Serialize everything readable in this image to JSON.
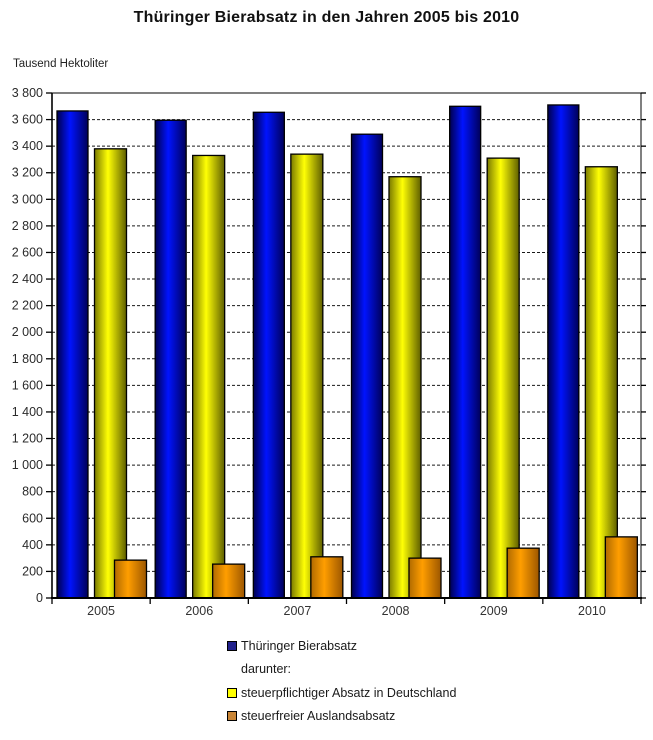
{
  "title": "Thüringer Bierabsatz in den Jahren 2005 bis 2010",
  "y_axis": {
    "unit_label": "Tausend Hektoliter"
  },
  "chart_data": {
    "type": "bar",
    "title": "Thüringer Bierabsatz in den Jahren 2005 bis 2010",
    "xlabel": "",
    "ylabel": "Tausend Hektoliter",
    "categories": [
      "2005",
      "2006",
      "2007",
      "2008",
      "2009",
      "2010"
    ],
    "series": [
      {
        "name": "Thüringer Bierabsatz",
        "values": [
          3665,
          3595,
          3655,
          3490,
          3700,
          3710
        ],
        "legend_color": "#21218C",
        "bar_gradient": [
          "#00004D",
          "#0013FF",
          "#000059"
        ]
      },
      {
        "name": "steuerpflichtiger Absatz in Deutschland",
        "values": [
          3380,
          3330,
          3340,
          3170,
          3310,
          3245
        ],
        "legend_color": "#FFFF00",
        "bar_gradient": [
          "#7A7A00",
          "#FFFF05",
          "#5E5E00"
        ]
      },
      {
        "name": "steuerfreier Auslandsabsatz",
        "values": [
          285,
          255,
          310,
          300,
          375,
          460
        ],
        "legend_color": "#C98536",
        "bar_gradient": [
          "#B06A00",
          "#FF9E00",
          "#9C5600"
        ]
      }
    ],
    "ylim": [
      0,
      3800
    ],
    "ytick_step": 200,
    "grid": "horizontal-dashed",
    "legend_position": "bottom"
  },
  "legend": {
    "items": [
      {
        "label": "Thüringer Bierabsatz",
        "marker": "blue-square",
        "series_index": 0
      },
      {
        "label": "darunter:",
        "marker": "none",
        "series_index": -1
      },
      {
        "label": "steuerpflichtiger Absatz in Deutschland",
        "marker": "yellow-square",
        "series_index": 1
      },
      {
        "label": "steuerfreier Auslandsabsatz",
        "marker": "orange-square",
        "series_index": 2
      }
    ]
  }
}
